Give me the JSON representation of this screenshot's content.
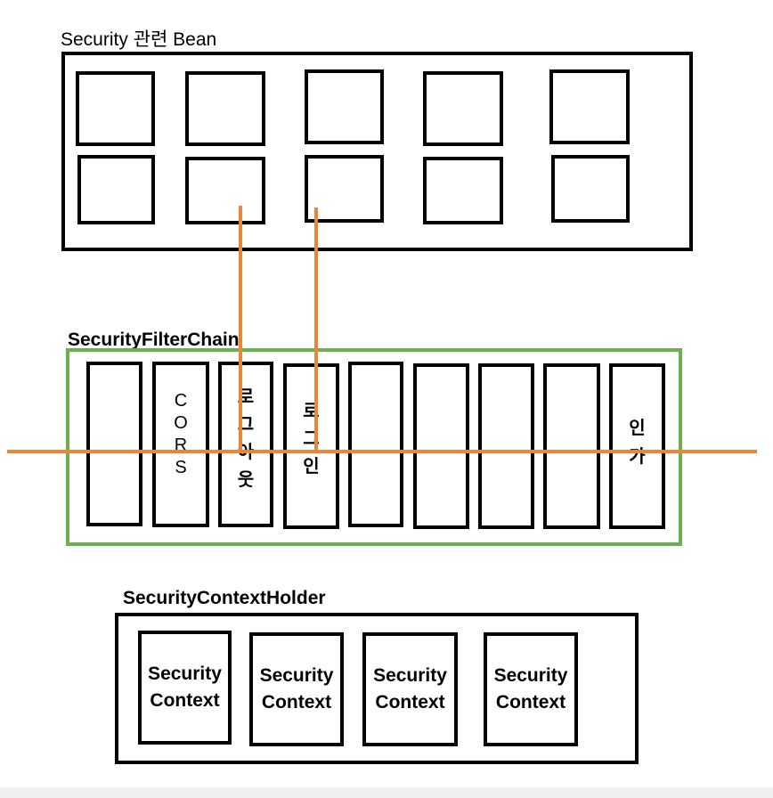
{
  "security_beans": {
    "title": "Security 관련 Bean",
    "box_count": 10
  },
  "filter_chain": {
    "title": "SecurityFilterChain",
    "filters": [
      {
        "name": "",
        "chars": []
      },
      {
        "name": "CORS",
        "chars": [
          "C",
          "O",
          "R",
          "S"
        ]
      },
      {
        "name": "로그아웃",
        "chars": [
          "로",
          "그",
          "아",
          "웃"
        ]
      },
      {
        "name": "로그인",
        "chars": [
          "로",
          "그",
          "인"
        ]
      },
      {
        "name": "",
        "chars": []
      },
      {
        "name": "",
        "chars": []
      },
      {
        "name": "",
        "chars": []
      },
      {
        "name": "",
        "chars": []
      },
      {
        "name": "인가",
        "chars": [
          "인",
          "가"
        ]
      }
    ]
  },
  "context_holder": {
    "title": "SecurityContextHolder",
    "contexts": [
      {
        "line1": "Security",
        "line2": "Context"
      },
      {
        "line1": "Security",
        "line2": "Context"
      },
      {
        "line1": "Security",
        "line2": "Context"
      },
      {
        "line1": "Security",
        "line2": "Context"
      }
    ]
  },
  "colors": {
    "connector": "#e8873a",
    "chain_border": "#6ab04c",
    "stroke": "#000000"
  }
}
